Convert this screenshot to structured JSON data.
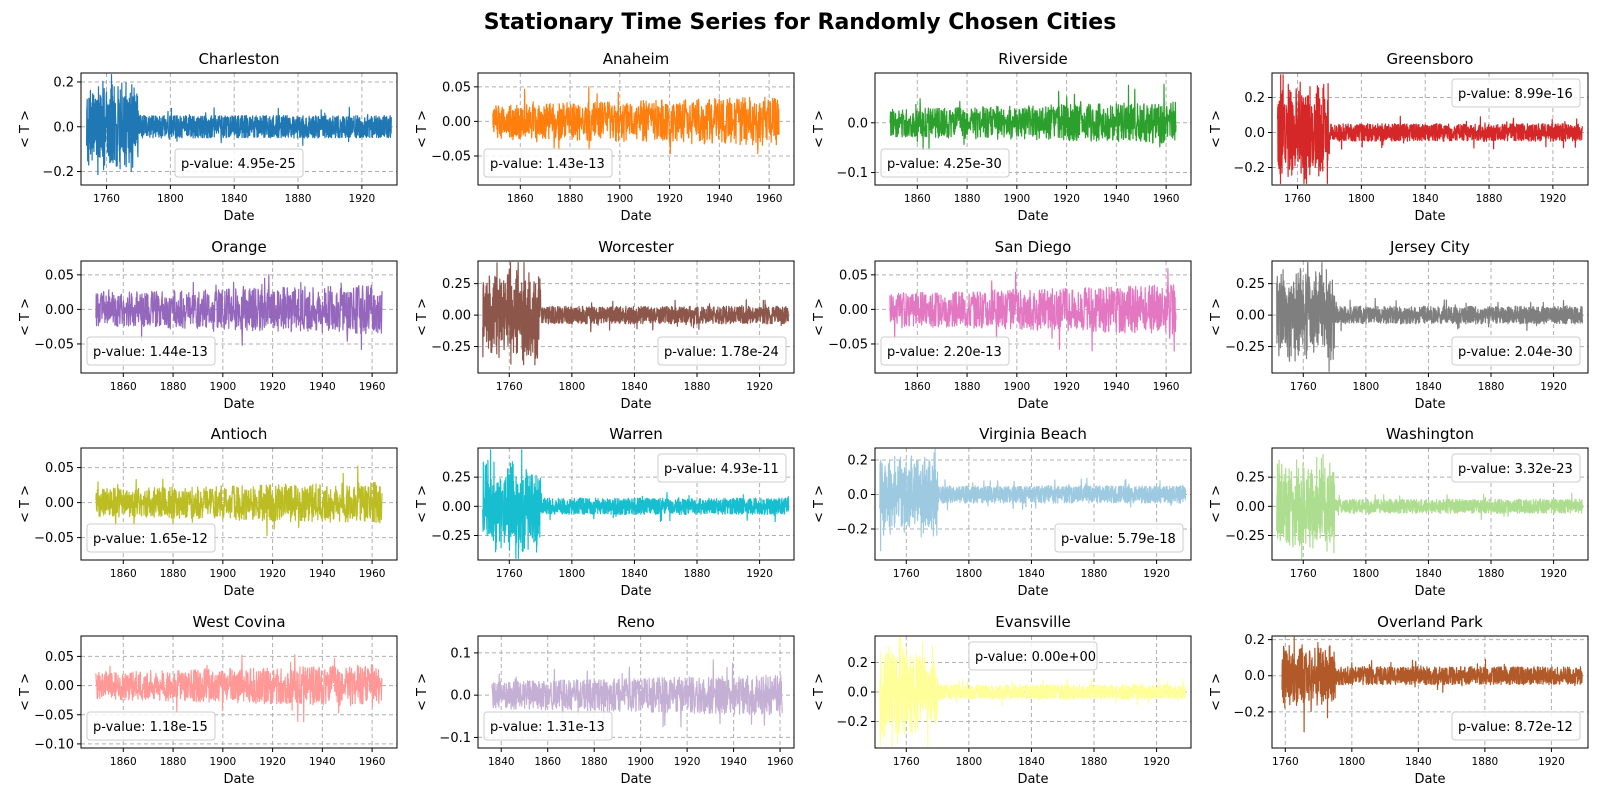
{
  "figure_title": "Stationary Time Series for Randomly Chosen Cities",
  "chart_data": [
    {
      "type": "line",
      "title": "Charleston",
      "xlabel": "Date",
      "ylabel": "< T >",
      "color": "#1f77b4",
      "xlim": [
        1744,
        1942
      ],
      "ylim": [
        -0.26,
        0.24
      ],
      "xticks": [
        1760,
        1800,
        1840,
        1880,
        1920
      ],
      "yticks": [
        -0.2,
        0.0,
        0.2
      ],
      "ytick_labels": [
        "−0.2",
        "0.0",
        "0.2"
      ],
      "pvalue": "p-value: 4.95e-25",
      "legend_loc": "lower-center",
      "start": 1747.5,
      "end": 1938.5,
      "amp": 0.05,
      "early_end": 1780,
      "early_amp": 0.22,
      "seed": 11
    },
    {
      "type": "line",
      "title": "Anaheim",
      "xlabel": "Date",
      "ylabel": "< T >",
      "color": "#ff7f0e",
      "xlim": [
        1843,
        1970
      ],
      "ylim": [
        -0.092,
        0.07
      ],
      "xticks": [
        1860,
        1880,
        1900,
        1920,
        1940,
        1960
      ],
      "yticks": [
        -0.05,
        0.0,
        0.05
      ],
      "ytick_labels": [
        "−0.05",
        "0.00",
        "0.05"
      ],
      "pvalue": "p-value: 1.43e-13",
      "legend_loc": "lower-left",
      "start": 1849,
      "end": 1964,
      "amp": 0.03,
      "early_end": 0,
      "early_amp": 0.06,
      "seed": 12
    },
    {
      "type": "line",
      "title": "Riverside",
      "xlabel": "Date",
      "ylabel": "< T >",
      "color": "#2ca02c",
      "xlim": [
        1843,
        1970
      ],
      "ylim": [
        -0.125,
        0.1
      ],
      "xticks": [
        1860,
        1880,
        1900,
        1920,
        1940,
        1960
      ],
      "yticks": [
        -0.1,
        0.0
      ],
      "ytick_labels": [
        "−0.1",
        "0.0"
      ],
      "pvalue": "p-value: 4.25e-30",
      "legend_loc": "lower-left",
      "start": 1849,
      "end": 1964,
      "amp": 0.035,
      "early_end": 0,
      "early_amp": 0.09,
      "seed": 13
    },
    {
      "type": "line",
      "title": "Greensboro",
      "xlabel": "Date",
      "ylabel": "< T >",
      "color": "#d62728",
      "xlim": [
        1744,
        1942
      ],
      "ylim": [
        -0.3,
        0.34
      ],
      "xticks": [
        1760,
        1800,
        1840,
        1880,
        1920
      ],
      "yticks": [
        -0.2,
        0.0,
        0.2
      ],
      "ytick_labels": [
        "−0.2",
        "0.0",
        "0.2"
      ],
      "pvalue": "p-value: 8.99e-16",
      "legend_loc": "upper-right",
      "start": 1747.5,
      "end": 1938.5,
      "amp": 0.05,
      "early_end": 1780,
      "early_amp": 0.3,
      "seed": 14
    },
    {
      "type": "line",
      "title": "Orange",
      "xlabel": "Date",
      "ylabel": "< T >",
      "color": "#9467bd",
      "xlim": [
        1843,
        1970
      ],
      "ylim": [
        -0.092,
        0.07
      ],
      "xticks": [
        1860,
        1880,
        1900,
        1920,
        1940,
        1960
      ],
      "yticks": [
        -0.05,
        0.0,
        0.05
      ],
      "ytick_labels": [
        "−0.05",
        "0.00",
        "0.05"
      ],
      "pvalue": "p-value: 1.44e-13",
      "legend_loc": "lower-left",
      "start": 1849,
      "end": 1964,
      "amp": 0.03,
      "early_end": 0,
      "early_amp": 0.06,
      "seed": 15
    },
    {
      "type": "line",
      "title": "Worcester",
      "xlabel": "Date",
      "ylabel": "< T >",
      "color": "#8c564b",
      "xlim": [
        1740,
        1942
      ],
      "ylim": [
        -0.46,
        0.43
      ],
      "xticks": [
        1760,
        1800,
        1840,
        1880,
        1920
      ],
      "yticks": [
        -0.25,
        0.0,
        0.25
      ],
      "ytick_labels": [
        "−0.25",
        "0.00",
        "0.25"
      ],
      "pvalue": "p-value: 1.78e-24",
      "legend_loc": "lower-right",
      "start": 1743,
      "end": 1938.5,
      "amp": 0.07,
      "early_end": 1780,
      "early_amp": 0.4,
      "seed": 16
    },
    {
      "type": "line",
      "title": "San Diego",
      "xlabel": "Date",
      "ylabel": "< T >",
      "color": "#e377c2",
      "xlim": [
        1843,
        1970
      ],
      "ylim": [
        -0.092,
        0.07
      ],
      "xticks": [
        1860,
        1880,
        1900,
        1920,
        1940,
        1960
      ],
      "yticks": [
        -0.05,
        0.0,
        0.05
      ],
      "ytick_labels": [
        "−0.05",
        "0.00",
        "0.05"
      ],
      "pvalue": "p-value: 2.20e-13",
      "legend_loc": "lower-left",
      "start": 1849,
      "end": 1964,
      "amp": 0.03,
      "early_end": 0,
      "early_amp": 0.06,
      "seed": 17
    },
    {
      "type": "line",
      "title": "Jersey City",
      "xlabel": "Date",
      "ylabel": "< T >",
      "color": "#7f7f7f",
      "xlim": [
        1740,
        1942
      ],
      "ylim": [
        -0.46,
        0.43
      ],
      "xticks": [
        1760,
        1800,
        1840,
        1880,
        1920
      ],
      "yticks": [
        -0.25,
        0.0,
        0.25
      ],
      "ytick_labels": [
        "−0.25",
        "0.00",
        "0.25"
      ],
      "pvalue": "p-value: 2.04e-30",
      "legend_loc": "lower-right",
      "start": 1743,
      "end": 1938.5,
      "amp": 0.07,
      "early_end": 1780,
      "early_amp": 0.4,
      "seed": 18
    },
    {
      "type": "line",
      "title": "Antioch",
      "xlabel": "Date",
      "ylabel": "< T >",
      "color": "#bcbd22",
      "xlim": [
        1843,
        1970
      ],
      "ylim": [
        -0.082,
        0.078
      ],
      "xticks": [
        1860,
        1880,
        1900,
        1920,
        1940,
        1960
      ],
      "yticks": [
        -0.05,
        0.0,
        0.05
      ],
      "ytick_labels": [
        "−0.05",
        "0.00",
        "0.05"
      ],
      "pvalue": "p-value: 1.65e-12",
      "legend_loc": "lower-left",
      "start": 1849,
      "end": 1964,
      "amp": 0.025,
      "early_end": 0,
      "early_amp": 0.07,
      "seed": 19
    },
    {
      "type": "line",
      "title": "Warren",
      "xlabel": "Date",
      "ylabel": "< T >",
      "color": "#17becf",
      "xlim": [
        1740,
        1942
      ],
      "ylim": [
        -0.46,
        0.5
      ],
      "xticks": [
        1760,
        1800,
        1840,
        1880,
        1920
      ],
      "yticks": [
        -0.25,
        0.0,
        0.25
      ],
      "ytick_labels": [
        "−0.25",
        "0.00",
        "0.25"
      ],
      "pvalue": "p-value: 4.93e-11",
      "legend_loc": "upper-right",
      "start": 1743,
      "end": 1938.5,
      "amp": 0.07,
      "early_end": 1780,
      "early_amp": 0.42,
      "seed": 20
    },
    {
      "type": "line",
      "title": "Virginia Beach",
      "xlabel": "Date",
      "ylabel": "< T >",
      "color": "#9ecae1",
      "xlim": [
        1740,
        1942
      ],
      "ylim": [
        -0.38,
        0.27
      ],
      "xticks": [
        1760,
        1800,
        1840,
        1880,
        1920
      ],
      "yticks": [
        -0.2,
        0.0,
        0.2
      ],
      "ytick_labels": [
        "−0.2",
        "0.0",
        "0.2"
      ],
      "pvalue": "p-value: 5.79e-18",
      "legend_loc": "lower-right",
      "start": 1743,
      "end": 1938.5,
      "amp": 0.05,
      "early_end": 1780,
      "early_amp": 0.26,
      "seed": 21
    },
    {
      "type": "line",
      "title": "Washington",
      "xlabel": "Date",
      "ylabel": "< T >",
      "color": "#addd8e",
      "xlim": [
        1740,
        1942
      ],
      "ylim": [
        -0.46,
        0.5
      ],
      "xticks": [
        1760,
        1800,
        1840,
        1880,
        1920
      ],
      "yticks": [
        -0.25,
        0.0,
        0.25
      ],
      "ytick_labels": [
        "−0.25",
        "0.00",
        "0.25"
      ],
      "pvalue": "p-value: 3.32e-23",
      "legend_loc": "upper-right",
      "start": 1743,
      "end": 1938.5,
      "amp": 0.06,
      "early_end": 1780,
      "early_amp": 0.42,
      "seed": 22
    },
    {
      "type": "line",
      "title": "West Covina",
      "xlabel": "Date",
      "ylabel": "< T >",
      "color": "#ff9896",
      "xlim": [
        1843,
        1970
      ],
      "ylim": [
        -0.107,
        0.085
      ],
      "xticks": [
        1860,
        1880,
        1900,
        1920,
        1940,
        1960
      ],
      "yticks": [
        -0.1,
        -0.05,
        0.0,
        0.05
      ],
      "ytick_labels": [
        "−0.10",
        "−0.05",
        "0.00",
        "0.05"
      ],
      "pvalue": "p-value: 1.18e-15",
      "legend_loc": "lower-left",
      "start": 1849,
      "end": 1964,
      "amp": 0.03,
      "early_end": 0,
      "early_amp": 0.08,
      "seed": 23
    },
    {
      "type": "line",
      "title": "Reno",
      "xlabel": "Date",
      "ylabel": "< T >",
      "color": "#c5b0d5",
      "xlim": [
        1830,
        1966
      ],
      "ylim": [
        -0.125,
        0.14
      ],
      "xticks": [
        1840,
        1860,
        1880,
        1900,
        1920,
        1940,
        1960
      ],
      "yticks": [
        -0.1,
        0.0,
        0.1
      ],
      "ytick_labels": [
        "−0.1",
        "0.0",
        "0.1"
      ],
      "pvalue": "p-value: 1.31e-13",
      "legend_loc": "lower-left",
      "start": 1836,
      "end": 1961,
      "amp": 0.04,
      "early_end": 0,
      "early_amp": 0.12,
      "seed": 24
    },
    {
      "type": "line",
      "title": "Evansville",
      "xlabel": "Date",
      "ylabel": "< T >",
      "color": "#ffff99",
      "xlim": [
        1740,
        1942
      ],
      "ylim": [
        -0.38,
        0.38
      ],
      "xticks": [
        1760,
        1800,
        1840,
        1880,
        1920
      ],
      "yticks": [
        -0.2,
        0.0,
        0.2
      ],
      "ytick_labels": [
        "−0.2",
        "0.0",
        "0.2"
      ],
      "pvalue": "p-value: 0.00e+00",
      "legend_loc": "upper-center",
      "start": 1743,
      "end": 1938.5,
      "amp": 0.05,
      "early_end": 1780,
      "early_amp": 0.34,
      "seed": 25
    },
    {
      "type": "line",
      "title": "Overland Park",
      "xlabel": "Date",
      "ylabel": "< T >",
      "color": "#b15928",
      "xlim": [
        1752,
        1942
      ],
      "ylim": [
        -0.4,
        0.22
      ],
      "xticks": [
        1760,
        1800,
        1840,
        1880,
        1920
      ],
      "yticks": [
        -0.2,
        0.0,
        0.2
      ],
      "ytick_labels": [
        "−0.2",
        "0.0",
        "0.2"
      ],
      "pvalue": "p-value: 8.72e-12",
      "legend_loc": "lower-right",
      "start": 1758,
      "end": 1938.5,
      "amp": 0.05,
      "early_end": 1790,
      "early_amp": 0.2,
      "seed": 26
    }
  ]
}
